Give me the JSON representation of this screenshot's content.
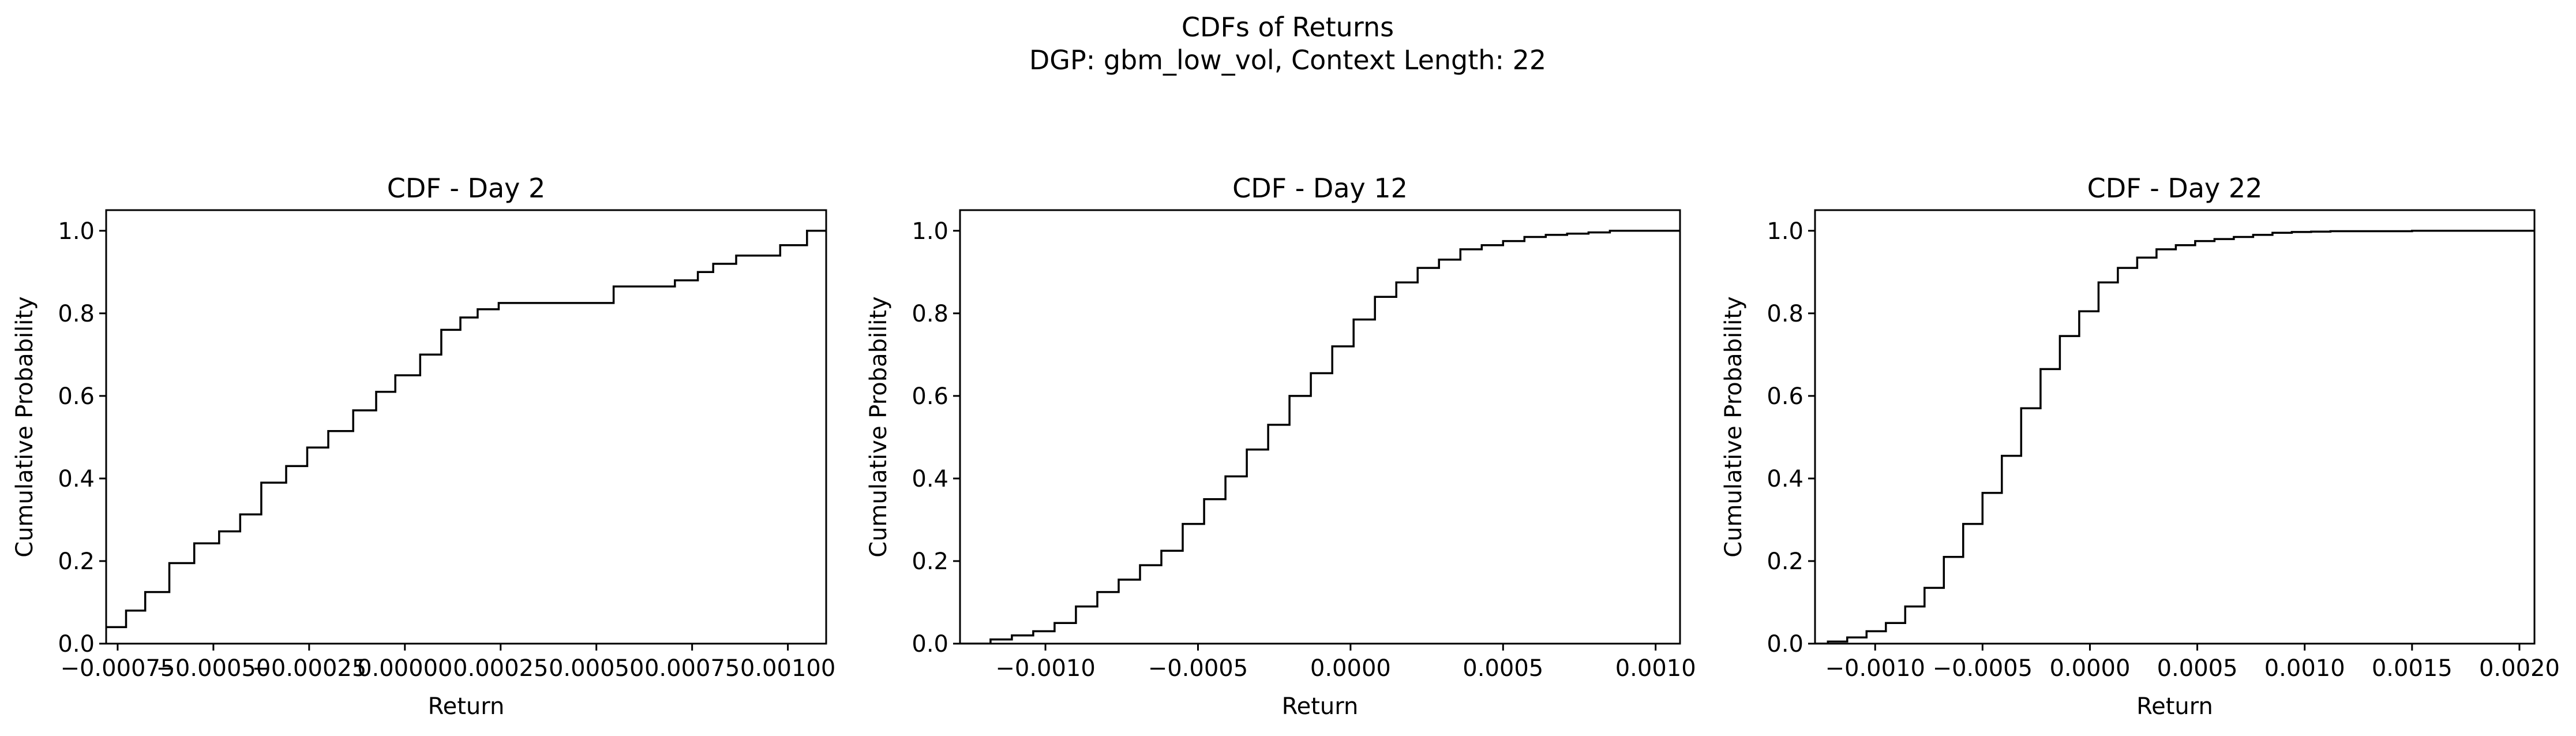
{
  "figure": {
    "title_line1": "CDFs of Returns",
    "title_line2": "DGP: gbm_low_vol, Context Length: 22"
  },
  "chart_data": [
    {
      "type": "step",
      "title": "CDF - Day 2",
      "xlabel": "Return",
      "ylabel": "Cumulative Probability",
      "xlim": [
        -0.00078,
        0.0011
      ],
      "ylim": [
        0,
        1.05
      ],
      "xticks": [
        -0.00075,
        -0.0005,
        -0.00025,
        0.0,
        0.00025,
        0.0005,
        0.00075,
        0.001
      ],
      "xtick_labels": [
        "−0.00075",
        "−0.00050",
        "−0.00025",
        "0.00000",
        "0.00025",
        "0.00050",
        "0.00075",
        "0.00100"
      ],
      "yticks": [
        0,
        0.2,
        0.4,
        0.6,
        0.8,
        1.0
      ],
      "ytick_labels": [
        "0.0",
        "0.2",
        "0.4",
        "0.6",
        "0.8",
        "1.0"
      ],
      "grid": false,
      "x": [
        -0.00078,
        -0.000728,
        -0.000678,
        -0.000615,
        -0.00055,
        -0.000485,
        -0.00043,
        -0.000375,
        -0.00031,
        -0.000255,
        -0.0002,
        -0.000135,
        -7.5e-05,
        -2.5e-05,
        4e-05,
        9.5e-05,
        0.000145,
        0.00019,
        0.000245,
        0.000295,
        0.000545,
        0.000705,
        0.000765,
        0.000805,
        0.000865,
        0.00098,
        0.00105
      ],
      "y": [
        0.04,
        0.08,
        0.125,
        0.195,
        0.243,
        0.272,
        0.313,
        0.39,
        0.43,
        0.475,
        0.515,
        0.565,
        0.61,
        0.65,
        0.7,
        0.76,
        0.79,
        0.81,
        0.825,
        0.825,
        0.865,
        0.88,
        0.9,
        0.92,
        0.94,
        0.965,
        1.0
      ]
    },
    {
      "type": "step",
      "title": "CDF - Day 12",
      "xlabel": "Return",
      "ylabel": "Cumulative Probability",
      "xlim": [
        -0.00128,
        0.00108
      ],
      "ylim": [
        0,
        1.05
      ],
      "xticks": [
        -0.001,
        -0.0005,
        0.0,
        0.0005,
        0.001
      ],
      "xtick_labels": [
        "−0.0010",
        "−0.0005",
        "0.0000",
        "0.0005",
        "0.0010"
      ],
      "yticks": [
        0,
        0.2,
        0.4,
        0.6,
        0.8,
        1.0
      ],
      "ytick_labels": [
        "0.0",
        "0.2",
        "0.4",
        "0.6",
        "0.8",
        "1.0"
      ],
      "grid": false,
      "x": [
        -0.00128,
        -0.00118,
        -0.00111,
        -0.00104,
        -0.00097,
        -0.0009,
        -0.00083,
        -0.00076,
        -0.00069,
        -0.00062,
        -0.00055,
        -0.00048,
        -0.00041,
        -0.00034,
        -0.00027,
        -0.0002,
        -0.00013,
        -6e-05,
        1e-05,
        8e-05,
        0.00015,
        0.00022,
        0.00029,
        0.00036,
        0.00043,
        0.0005,
        0.00057,
        0.00064,
        0.00071,
        0.00078,
        0.00085,
        0.00092,
        0.00099
      ],
      "y": [
        0.0,
        0.01,
        0.02,
        0.03,
        0.05,
        0.09,
        0.125,
        0.155,
        0.19,
        0.225,
        0.29,
        0.35,
        0.405,
        0.47,
        0.53,
        0.6,
        0.655,
        0.72,
        0.785,
        0.84,
        0.875,
        0.91,
        0.93,
        0.955,
        0.965,
        0.975,
        0.985,
        0.99,
        0.993,
        0.996,
        1.0,
        1.0,
        1.0
      ]
    },
    {
      "type": "step",
      "title": "CDF - Day 22",
      "xlabel": "Return",
      "ylabel": "Cumulative Probability",
      "xlim": [
        -0.00128,
        0.00207
      ],
      "ylim": [
        0,
        1.05
      ],
      "xticks": [
        -0.001,
        -0.0005,
        0.0,
        0.0005,
        0.001,
        0.0015,
        0.002
      ],
      "xtick_labels": [
        "−0.0010",
        "−0.0005",
        "0.0000",
        "0.0005",
        "0.0010",
        "0.0015",
        "0.0020"
      ],
      "yticks": [
        0,
        0.2,
        0.4,
        0.6,
        0.8,
        1.0
      ],
      "ytick_labels": [
        "0.0",
        "0.2",
        "0.4",
        "0.6",
        "0.8",
        "1.0"
      ],
      "grid": false,
      "x": [
        -0.00128,
        -0.00122,
        -0.00113,
        -0.00104,
        -0.00095,
        -0.00086,
        -0.00077,
        -0.00068,
        -0.00059,
        -0.0005,
        -0.00041,
        -0.00032,
        -0.00023,
        -0.00014,
        -5e-05,
        4e-05,
        0.00013,
        0.00022,
        0.00031,
        0.0004,
        0.00049,
        0.00058,
        0.00067,
        0.00076,
        0.00085,
        0.00094,
        0.00103,
        0.00112,
        0.0013,
        0.0015,
        0.0018,
        0.00202
      ],
      "y": [
        0.0,
        0.005,
        0.015,
        0.03,
        0.05,
        0.09,
        0.135,
        0.21,
        0.29,
        0.365,
        0.455,
        0.57,
        0.665,
        0.745,
        0.805,
        0.875,
        0.91,
        0.935,
        0.955,
        0.965,
        0.975,
        0.98,
        0.985,
        0.99,
        0.995,
        0.997,
        0.998,
        0.999,
        0.999,
        1.0,
        1.0,
        1.0
      ]
    }
  ]
}
